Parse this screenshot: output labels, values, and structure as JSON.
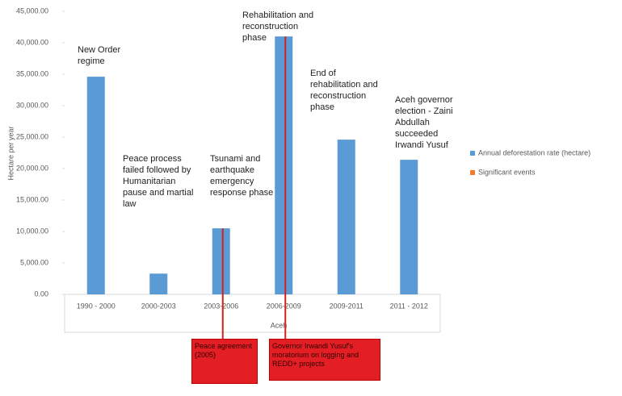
{
  "chart_data": {
    "type": "bar",
    "y_label": "Hectare per year",
    "x_label": "Aceh",
    "categories": [
      "1990 - 2000",
      "2000-2003",
      "2003-2006",
      "2006-2009",
      "2009-2011",
      "2011 - 2012"
    ],
    "series": [
      {
        "name": "Annual deforestation rate (hectare)",
        "color": "#5b9bd5",
        "values": [
          34600,
          3300,
          10500,
          41000,
          24600,
          21400
        ]
      },
      {
        "name": "Significant events",
        "color": "#ed7d31"
      }
    ],
    "annotations": [
      "New Order regime",
      "Peace process failed followed by Humanitarian pause and martial law",
      "Tsunami and earthquake emergency response phase",
      "Rehabilitation and reconstruction phase",
      "End of rehabilitation and reconstruction phase",
      "Aceh governor election - Zaini Abdullah succeeded Irwandi Yusuf"
    ],
    "events": [
      "Peace agreement (2005)",
      "Governor Irwandi Yusuf's moratorium on logging and REDD+ projects"
    ],
    "ylim": [
      0,
      45000
    ],
    "yticks": [
      {
        "value": 0,
        "label": "0.00"
      },
      {
        "value": 5000,
        "label": "5,000.00"
      },
      {
        "value": 10000,
        "label": "10,000.00"
      },
      {
        "value": 15000,
        "label": "15,000.00"
      },
      {
        "value": 20000,
        "label": "20,000.00"
      },
      {
        "value": 25000,
        "label": "25,000.00"
      },
      {
        "value": 30000,
        "label": "30,000.00"
      },
      {
        "value": 35000,
        "label": "35,000.00"
      },
      {
        "value": 40000,
        "label": "40,000.00"
      },
      {
        "value": 45000,
        "label": "45,000.00"
      }
    ],
    "legend": "right"
  }
}
